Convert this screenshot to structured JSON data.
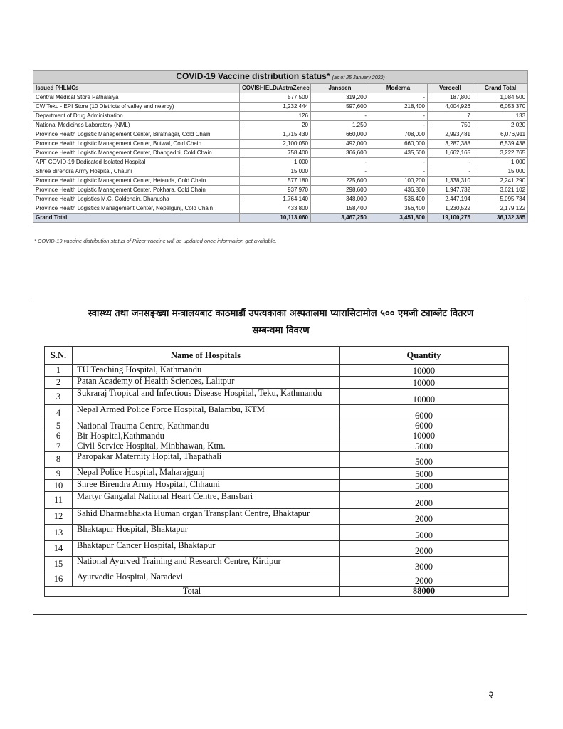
{
  "table1": {
    "title": "COVID-19 Vaccine distribution status*",
    "title_note": "(as of 25 January 2022)",
    "header": [
      "Issued PHLMCs",
      "COVISHIELD/AstraZeneca",
      "Janssen",
      "Moderna",
      "Verocell",
      "Grand Total"
    ],
    "rows": [
      [
        "Central Medical Store Pathalaiya",
        "577,500",
        "319,200",
        "-",
        "187,800",
        "1,084,500"
      ],
      [
        "CW Teku - EPI Store (10 Districts of valley and nearby)",
        "1,232,444",
        "597,600",
        "218,400",
        "4,004,926",
        "6,053,370"
      ],
      [
        "Department of Drug Administration",
        "126",
        "-",
        "-",
        "7",
        "133"
      ],
      [
        "National Medicines Laboratory (NML)",
        "20",
        "1,250",
        "-",
        "750",
        "2,020"
      ],
      [
        "Province Health Logistic Management Center, Biratnagar, Cold Chain",
        "1,715,430",
        "660,000",
        "708,000",
        "2,993,481",
        "6,076,911"
      ],
      [
        "Province Health Logistic Management Center, Butwal, Cold Chain",
        "2,100,050",
        "492,000",
        "660,000",
        "3,287,388",
        "6,539,438"
      ],
      [
        "Province Health Logistic Management Center, Dhangadhi, Cold Chain",
        "758,400",
        "366,600",
        "435,600",
        "1,662,165",
        "3,222,765"
      ],
      [
        "APF COVID-19 Dedicated Isolated Hospital",
        "1,000",
        "-",
        "-",
        "-",
        "1,000"
      ],
      [
        "Shree Birendra Army Hospital, Chauni",
        "15,000",
        "-",
        "-",
        "-",
        "15,000"
      ],
      [
        "Province Health Logistic Management Center, Hetauda, Cold Chain",
        "577,180",
        "225,600",
        "100,200",
        "1,338,310",
        "2,241,290"
      ],
      [
        "Province Health Logistic Management Center, Pokhara, Cold Chain",
        "937,970",
        "298,600",
        "436,800",
        "1,947,732",
        "3,621,102"
      ],
      [
        "Province Health Logistics M.C, Coldchain, Dhanusha",
        "1,764,140",
        "348,000",
        "536,400",
        "2,447,194",
        "5,095,734"
      ],
      [
        "Province Health Logistics Management Center, Nepalgunj, Cold Chain",
        "433,800",
        "158,400",
        "356,400",
        "1,230,522",
        "2,179,122"
      ]
    ],
    "total": [
      "Grand Total",
      "10,113,060",
      "3,467,250",
      "3,451,800",
      "19,100,275",
      "36,132,385"
    ]
  },
  "footnote": "* COVID-19 vaccine distribution status of Pfizer vaccine will be updated once information get available.",
  "table2": {
    "title_lines": [
      "स्वास्थ्य तथा जनसङ्ख्या मन्त्रालयबाट काठमाडौं उपत्यकाका अस्पतालमा प्यारासिटामोल ५०० एमजी ट्याब्लेट वितरण",
      "सम्बन्धमा विवरण"
    ],
    "header": [
      "S.N.",
      "Name of Hospitals",
      "Quantity"
    ],
    "rows": [
      [
        "1",
        "TU Teaching Hospital, Kathmandu",
        "10000"
      ],
      [
        "2",
        "Patan Academy  of Health Sciences, Lalitpur",
        "10000"
      ],
      [
        "3",
        "Sukraraj Tropical and Infectious Disease Hospital, Teku, Kathmandu",
        "10000"
      ],
      [
        "4",
        "Nepal Armed Police Force Hospital, Balambu, KTM",
        "6000"
      ],
      [
        "5",
        "National Trauma Centre, Kathmandu",
        "6000"
      ],
      [
        "6",
        "Bir Hospital,Kathmandu",
        "10000"
      ],
      [
        "7",
        "Civil Service Hospital,  Minbhawan,  Ktm.",
        "5000"
      ],
      [
        "8",
        "Paropakar Maternity Hopital, Thapathali",
        "5000"
      ],
      [
        "9",
        "Nepal Police Hospital, Maharajgunj",
        "5000"
      ],
      [
        "10",
        "Shree Birendra Army Hospital, Chhauni",
        "5000"
      ],
      [
        "11",
        "Martyr Gangalal National Heart Centre, Bansbari",
        "2000"
      ],
      [
        "12",
        "Sahid Dharmabhakta Human organ Transplant Centre, Bhaktapur",
        "2000"
      ],
      [
        "13",
        "Bhaktapur Hospital, Bhaktapur",
        "5000"
      ],
      [
        "14",
        "Bhaktapur Cancer Hospital, Bhaktapur",
        "2000"
      ],
      [
        "15",
        "National Ayurved Training and Research Centre, Kirtipur",
        "3000"
      ],
      [
        "16",
        "Ayurvedic Hospital, Naradevi",
        "2000"
      ]
    ],
    "total": [
      "Total",
      "88000"
    ]
  },
  "page_number": "२"
}
